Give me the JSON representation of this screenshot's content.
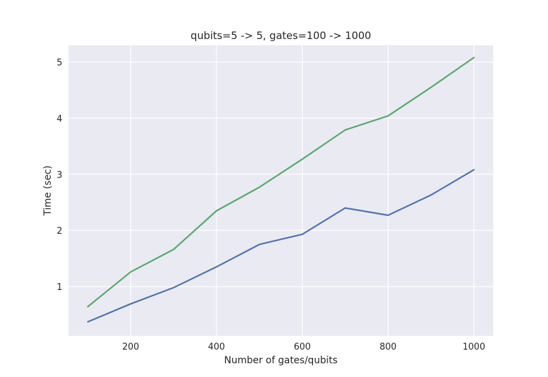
{
  "chart_data": {
    "type": "line",
    "title": "qubits=5 -> 5, gates=100 -> 1000",
    "xlabel": "Number of gates/qubits",
    "ylabel": "Time (sec)",
    "xlim": [
      55,
      1045
    ],
    "ylim": [
      0.12,
      5.3
    ],
    "xticks": [
      200,
      400,
      600,
      800,
      1000
    ],
    "yticks": [
      1,
      2,
      3,
      4,
      5
    ],
    "grid": true,
    "legend": "none",
    "x": [
      100,
      200,
      300,
      400,
      500,
      600,
      700,
      800,
      900,
      1000
    ],
    "series": [
      {
        "color": "#4c72b0",
        "values": [
          0.37,
          0.69,
          0.98,
          1.35,
          1.75,
          1.93,
          2.4,
          2.27,
          2.63,
          3.08
        ]
      },
      {
        "color": "#55a868",
        "values": [
          0.64,
          1.26,
          1.66,
          2.35,
          2.77,
          3.27,
          3.79,
          4.04,
          4.55,
          5.08
        ]
      }
    ],
    "colors": {
      "plot_background": "#eaeaf2",
      "grid": "#ffffff",
      "text": "#262626"
    }
  }
}
